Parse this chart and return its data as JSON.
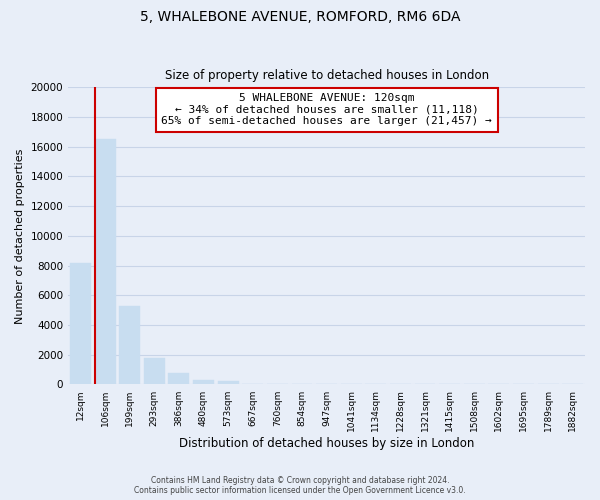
{
  "title": "5, WHALEBONE AVENUE, ROMFORD, RM6 6DA",
  "subtitle": "Size of property relative to detached houses in London",
  "xlabel": "Distribution of detached houses by size in London",
  "ylabel": "Number of detached properties",
  "bar_labels": [
    "12sqm",
    "106sqm",
    "199sqm",
    "293sqm",
    "386sqm",
    "480sqm",
    "573sqm",
    "667sqm",
    "760sqm",
    "854sqm",
    "947sqm",
    "1041sqm",
    "1134sqm",
    "1228sqm",
    "1321sqm",
    "1415sqm",
    "1508sqm",
    "1602sqm",
    "1695sqm",
    "1789sqm",
    "1882sqm"
  ],
  "bar_values": [
    8200,
    16500,
    5300,
    1750,
    750,
    300,
    200,
    0,
    0,
    0,
    0,
    0,
    0,
    0,
    0,
    0,
    0,
    0,
    0,
    0,
    0
  ],
  "bar_color": "#c8ddf0",
  "property_line_color": "#cc0000",
  "property_line_x": 0.5,
  "annotation_title": "5 WHALEBONE AVENUE: 120sqm",
  "annotation_line1": "← 34% of detached houses are smaller (11,118)",
  "annotation_line2": "65% of semi-detached houses are larger (21,457) →",
  "annotation_box_color": "#ffffff",
  "annotation_box_edge": "#cc0000",
  "ylim": [
    0,
    20000
  ],
  "yticks": [
    0,
    2000,
    4000,
    6000,
    8000,
    10000,
    12000,
    14000,
    16000,
    18000,
    20000
  ],
  "grid_color": "#c8d4e8",
  "background_color": "#e8eef8",
  "footer_line1": "Contains HM Land Registry data © Crown copyright and database right 2024.",
  "footer_line2": "Contains public sector information licensed under the Open Government Licence v3.0."
}
